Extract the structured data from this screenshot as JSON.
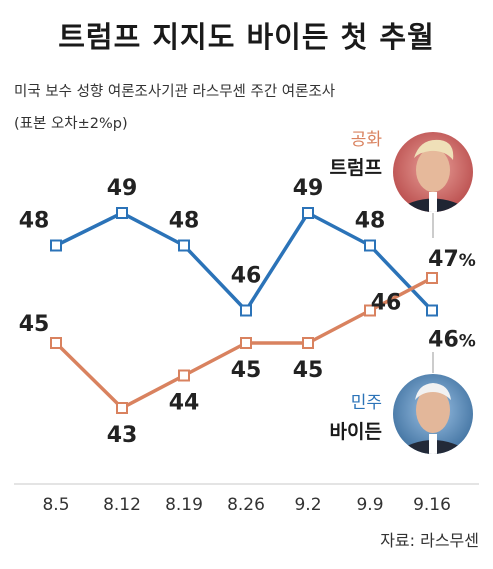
{
  "title": "트럼프 지지도 바이든 첫 추월",
  "subtitle": "미국 보수 성향 여론조사기관 라스무센 주간 여론조사",
  "note": "(표본 오차±2%p)",
  "source": "자료: 라스무센",
  "colors": {
    "biden": "#2b73b8",
    "trump": "#d9825f",
    "axis": "#bbbbbb"
  },
  "candidates": {
    "trump": {
      "party": "공화",
      "name": "트럼프",
      "photo_icon": "trump-portrait-icon"
    },
    "biden": {
      "party": "민주",
      "name": "바이든",
      "photo_icon": "biden-portrait-icon"
    }
  },
  "chart_data": {
    "type": "line",
    "categories": [
      "8.5",
      "8.12",
      "8.19",
      "8.26",
      "9.2",
      "9.9",
      "9.16"
    ],
    "series": [
      {
        "name": "바이든",
        "values": [
          48,
          49,
          48,
          46,
          49,
          48,
          46
        ]
      },
      {
        "name": "트럼프",
        "values": [
          45,
          43,
          44,
          45,
          45,
          46,
          47
        ]
      }
    ],
    "data_labels": {
      "바이든": [
        "48",
        "49",
        "48",
        "46",
        "49",
        "48",
        "46%"
      ],
      "트럼프": [
        "45",
        "43",
        "44",
        "45",
        "45",
        "46",
        "47%"
      ]
    },
    "grid": false
  }
}
